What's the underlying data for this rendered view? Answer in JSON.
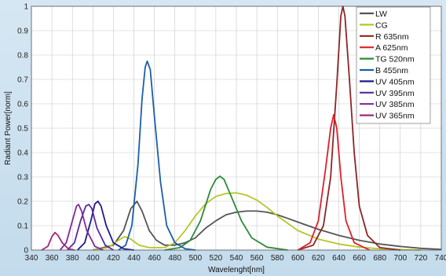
{
  "chart_data": {
    "type": "line",
    "title": "",
    "xlabel": "Wavelenght[nm]",
    "ylabel": "Radiant Power[norm]",
    "xlim": [
      340,
      740
    ],
    "ylim": [
      0,
      1
    ],
    "x_ticks": [
      340,
      360,
      380,
      400,
      420,
      440,
      460,
      480,
      500,
      520,
      540,
      560,
      580,
      600,
      620,
      640,
      660,
      680,
      700,
      720,
      740
    ],
    "y_ticks": [
      0,
      0.1,
      0.2,
      0.3,
      0.4,
      0.5,
      0.6,
      0.7,
      0.8,
      0.9,
      1
    ],
    "y_tick_labels": [
      "0",
      "0.1",
      "0.2",
      "0.3",
      "0.4",
      "0.5",
      "0.6",
      "0.7",
      "0.8",
      "0.9",
      "1"
    ],
    "grid": true,
    "legend_position": "top-right",
    "series": [
      {
        "name": "LW",
        "color": "#555555",
        "points": [
          [
            400,
            0
          ],
          [
            420,
            0.02
          ],
          [
            430,
            0.08
          ],
          [
            437,
            0.17
          ],
          [
            443,
            0.2
          ],
          [
            448,
            0.16
          ],
          [
            455,
            0.08
          ],
          [
            462,
            0.04
          ],
          [
            470,
            0.02
          ],
          [
            480,
            0.02
          ],
          [
            490,
            0.03
          ],
          [
            500,
            0.05
          ],
          [
            510,
            0.09
          ],
          [
            520,
            0.12
          ],
          [
            530,
            0.145
          ],
          [
            540,
            0.155
          ],
          [
            550,
            0.16
          ],
          [
            560,
            0.16
          ],
          [
            570,
            0.155
          ],
          [
            580,
            0.145
          ],
          [
            590,
            0.13
          ],
          [
            600,
            0.115
          ],
          [
            620,
            0.085
          ],
          [
            640,
            0.06
          ],
          [
            660,
            0.04
          ],
          [
            680,
            0.025
          ],
          [
            700,
            0.015
          ],
          [
            720,
            0.007
          ],
          [
            740,
            0.003
          ]
        ]
      },
      {
        "name": "CG",
        "color": "#b7c62a",
        "points": [
          [
            400,
            0
          ],
          [
            415,
            0.01
          ],
          [
            425,
            0.04
          ],
          [
            431,
            0.055
          ],
          [
            437,
            0.045
          ],
          [
            445,
            0.02
          ],
          [
            455,
            0.01
          ],
          [
            470,
            0.01
          ],
          [
            480,
            0.03
          ],
          [
            490,
            0.08
          ],
          [
            500,
            0.14
          ],
          [
            510,
            0.19
          ],
          [
            520,
            0.22
          ],
          [
            530,
            0.232
          ],
          [
            540,
            0.235
          ],
          [
            550,
            0.225
          ],
          [
            560,
            0.205
          ],
          [
            570,
            0.175
          ],
          [
            580,
            0.14
          ],
          [
            590,
            0.11
          ],
          [
            600,
            0.08
          ],
          [
            620,
            0.045
          ],
          [
            640,
            0.025
          ],
          [
            660,
            0.012
          ],
          [
            680,
            0.005
          ],
          [
            700,
            0.002
          ],
          [
            720,
            0
          ]
        ]
      },
      {
        "name": "R 635nm",
        "color": "#8c2525",
        "points": [
          [
            600,
            0
          ],
          [
            615,
            0.02
          ],
          [
            625,
            0.1
          ],
          [
            632,
            0.3
          ],
          [
            638,
            0.68
          ],
          [
            642,
            0.96
          ],
          [
            644,
            1.0
          ],
          [
            646,
            0.96
          ],
          [
            650,
            0.72
          ],
          [
            655,
            0.4
          ],
          [
            660,
            0.18
          ],
          [
            668,
            0.06
          ],
          [
            680,
            0.01
          ],
          [
            700,
            0
          ]
        ]
      },
      {
        "name": "A 625nm",
        "color": "#e0202a",
        "points": [
          [
            600,
            0
          ],
          [
            612,
            0.03
          ],
          [
            620,
            0.12
          ],
          [
            627,
            0.33
          ],
          [
            632,
            0.5
          ],
          [
            635,
            0.555
          ],
          [
            638,
            0.5
          ],
          [
            642,
            0.3
          ],
          [
            647,
            0.12
          ],
          [
            655,
            0.03
          ],
          [
            670,
            0
          ]
        ]
      },
      {
        "name": "TG 520nm",
        "color": "#2e8a3a",
        "points": [
          [
            470,
            0
          ],
          [
            485,
            0.01
          ],
          [
            495,
            0.04
          ],
          [
            505,
            0.12
          ],
          [
            515,
            0.25
          ],
          [
            520,
            0.29
          ],
          [
            524,
            0.303
          ],
          [
            528,
            0.29
          ],
          [
            535,
            0.22
          ],
          [
            545,
            0.12
          ],
          [
            555,
            0.05
          ],
          [
            570,
            0.012
          ],
          [
            590,
            0
          ]
        ]
      },
      {
        "name": "B 455nm",
        "color": "#1c5ea8",
        "points": [
          [
            425,
            0
          ],
          [
            432,
            0.02
          ],
          [
            438,
            0.1
          ],
          [
            444,
            0.35
          ],
          [
            448,
            0.62
          ],
          [
            451,
            0.75
          ],
          [
            453,
            0.775
          ],
          [
            456,
            0.74
          ],
          [
            460,
            0.55
          ],
          [
            466,
            0.28
          ],
          [
            472,
            0.1
          ],
          [
            480,
            0.03
          ],
          [
            490,
            0.005
          ],
          [
            500,
            0
          ]
        ]
      },
      {
        "name": "UV 405nm",
        "color": "#1e1a8a",
        "points": [
          [
            385,
            0
          ],
          [
            392,
            0.03
          ],
          [
            398,
            0.12
          ],
          [
            402,
            0.19
          ],
          [
            405,
            0.2
          ],
          [
            408,
            0.18
          ],
          [
            413,
            0.1
          ],
          [
            420,
            0.03
          ],
          [
            430,
            0.005
          ],
          [
            440,
            0
          ]
        ]
      },
      {
        "name": "UV 395nm",
        "color": "#5a2a9a",
        "points": [
          [
            375,
            0
          ],
          [
            382,
            0.03
          ],
          [
            388,
            0.12
          ],
          [
            393,
            0.18
          ],
          [
            396,
            0.187
          ],
          [
            399,
            0.17
          ],
          [
            404,
            0.09
          ],
          [
            412,
            0.02
          ],
          [
            420,
            0
          ]
        ]
      },
      {
        "name": "UV 385nm",
        "color": "#7e2aa0",
        "points": [
          [
            368,
            0
          ],
          [
            374,
            0.03
          ],
          [
            380,
            0.12
          ],
          [
            384,
            0.18
          ],
          [
            386,
            0.187
          ],
          [
            389,
            0.16
          ],
          [
            394,
            0.08
          ],
          [
            402,
            0.015
          ],
          [
            410,
            0
          ]
        ]
      },
      {
        "name": "UV 365nm",
        "color": "#a0287c",
        "points": [
          [
            350,
            0
          ],
          [
            356,
            0.015
          ],
          [
            360,
            0.055
          ],
          [
            363,
            0.072
          ],
          [
            366,
            0.06
          ],
          [
            370,
            0.03
          ],
          [
            376,
            0.005
          ],
          [
            382,
            0
          ]
        ]
      }
    ]
  }
}
